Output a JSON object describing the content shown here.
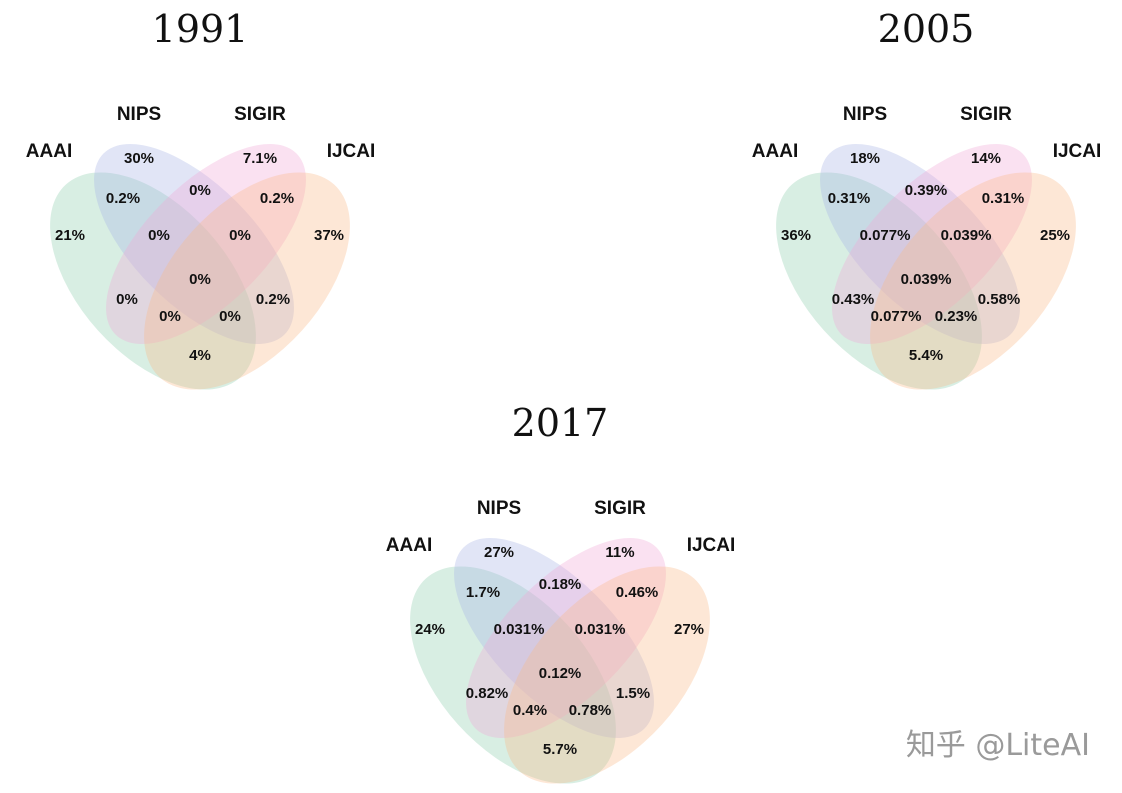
{
  "watermark": "知乎 @LiteAI",
  "colors": {
    "AAAI": "#8fcfb0",
    "NIPS": "#aab4e6",
    "SIGIR": "#f0a8d8",
    "IJCAI": "#f9b98a"
  },
  "diagrams": [
    {
      "title": "1991",
      "sets": [
        "AAAI",
        "NIPS",
        "SIGIR",
        "IJCAI"
      ],
      "regions": {
        "A": "21%",
        "N": "30%",
        "S": "7.1%",
        "I": "37%",
        "AN": "0.2%",
        "NS": "0%",
        "SI": "0.2%",
        "ANS": "0%",
        "NSI": "0%",
        "ANSI": "0%",
        "AS": "0%",
        "NI": "0.2%",
        "ASI": "0%",
        "ANI": "0%",
        "AI": "4%"
      }
    },
    {
      "title": "2005",
      "sets": [
        "AAAI",
        "NIPS",
        "SIGIR",
        "IJCAI"
      ],
      "regions": {
        "A": "36%",
        "N": "18%",
        "S": "14%",
        "I": "25%",
        "AN": "0.31%",
        "NS": "0.39%",
        "SI": "0.31%",
        "ANS": "0.077%",
        "NSI": "0.039%",
        "ANSI": "0.039%",
        "AS": "0.43%",
        "NI": "0.58%",
        "ASI": "0.077%",
        "ANI": "0.23%",
        "AI": "5.4%"
      }
    },
    {
      "title": "2017",
      "sets": [
        "AAAI",
        "NIPS",
        "SIGIR",
        "IJCAI"
      ],
      "regions": {
        "A": "24%",
        "N": "27%",
        "S": "11%",
        "I": "27%",
        "AN": "1.7%",
        "NS": "0.18%",
        "SI": "0.46%",
        "ANS": "0.031%",
        "NSI": "0.031%",
        "ANSI": "0.12%",
        "AS": "0.82%",
        "NI": "1.5%",
        "ASI": "0.4%",
        "ANI": "0.78%",
        "AI": "5.7%"
      }
    }
  ]
}
